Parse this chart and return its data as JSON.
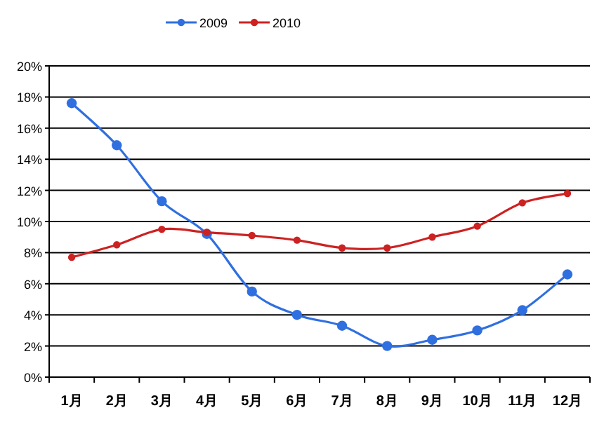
{
  "chart_data": {
    "type": "line",
    "categories": [
      "1月",
      "2月",
      "3月",
      "4月",
      "5月",
      "6月",
      "7月",
      "8月",
      "9月",
      "10月",
      "11月",
      "12月"
    ],
    "series": [
      {
        "name": "2009",
        "color": "#2f6fe0",
        "values": [
          17.6,
          14.9,
          11.3,
          9.2,
          5.5,
          4.0,
          3.3,
          2.0,
          2.4,
          3.0,
          4.3,
          6.6
        ]
      },
      {
        "name": "2010",
        "color": "#cc2222",
        "values": [
          7.7,
          8.5,
          9.5,
          9.3,
          9.1,
          8.8,
          8.3,
          8.3,
          9.0,
          9.7,
          11.2,
          11.8
        ]
      }
    ],
    "ylim": [
      0,
      20
    ],
    "yticks": [
      {
        "value": 0,
        "label": "0%"
      },
      {
        "value": 2,
        "label": "2%"
      },
      {
        "value": 4,
        "label": "4%"
      },
      {
        "value": 6,
        "label": "6%"
      },
      {
        "value": 8,
        "label": "8%"
      },
      {
        "value": 10,
        "label": "10%"
      },
      {
        "value": 12,
        "label": "12%"
      },
      {
        "value": 14,
        "label": "14%"
      },
      {
        "value": 16,
        "label": "16%"
      },
      {
        "value": 18,
        "label": "18%"
      },
      {
        "value": 20,
        "label": "20%"
      }
    ],
    "grid": "y",
    "legend": "top",
    "marker": "circle",
    "line_style": "solid"
  }
}
